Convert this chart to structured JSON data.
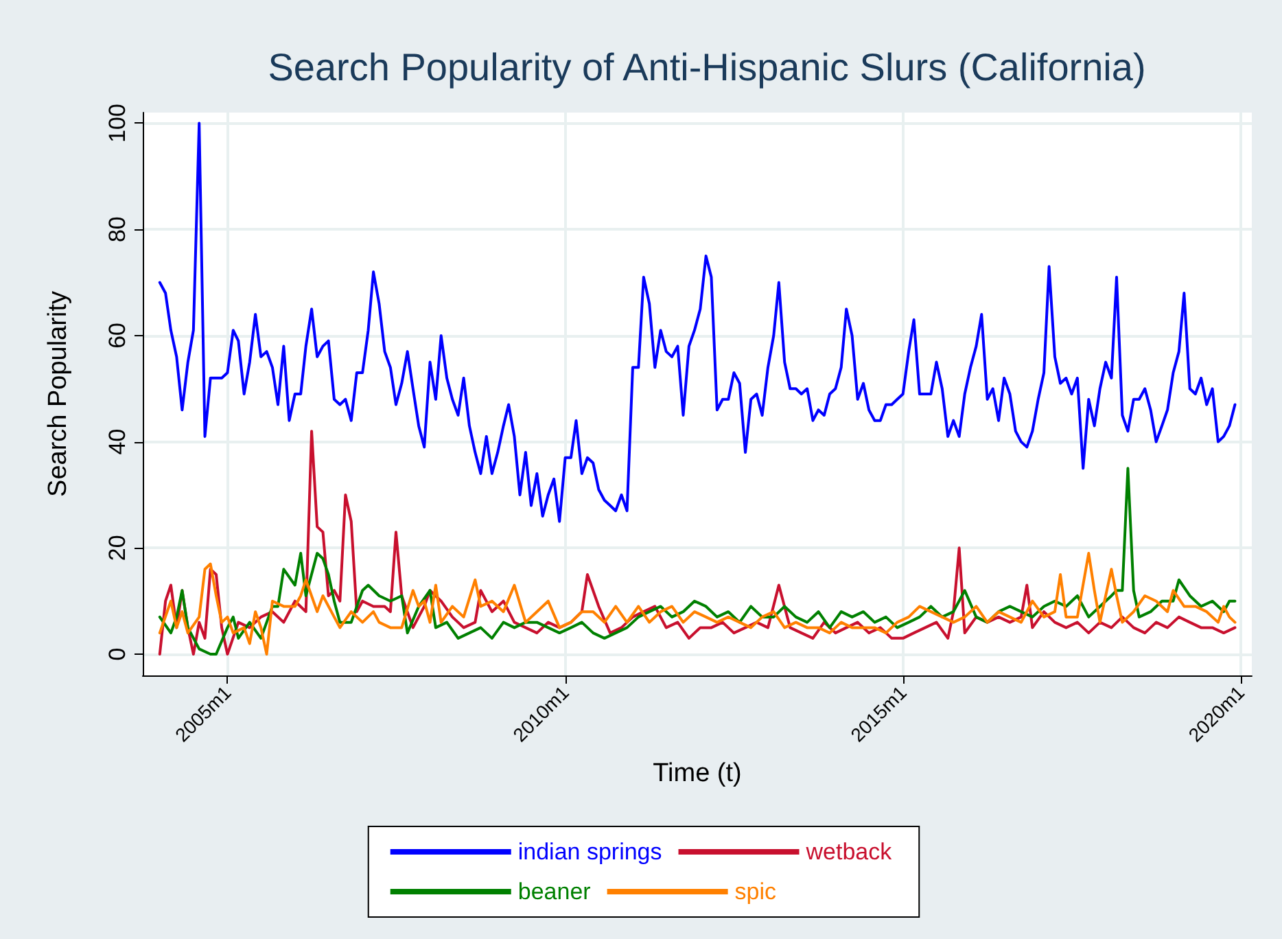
{
  "chart_data": {
    "type": "line",
    "title": "Search Popularity of Anti-Hispanic Slurs (California)",
    "xlabel": "Time (t)",
    "ylabel": "Search Popularity",
    "xlim": [
      "2003-10",
      "2020-03"
    ],
    "ylim": [
      -4,
      102
    ],
    "xticks": [
      {
        "value": "2005-01",
        "label": "2005m1"
      },
      {
        "value": "2010-01",
        "label": "2010m1"
      },
      {
        "value": "2015-01",
        "label": "2015m1"
      },
      {
        "value": "2020-01",
        "label": "2020m1"
      }
    ],
    "yticks": [
      0,
      20,
      40,
      60,
      80,
      100
    ],
    "grid": true,
    "legend": "bottom",
    "marker": "none",
    "line_style": "solid",
    "x": [
      "2004-01",
      "2004-02",
      "2004-03",
      "2004-04",
      "2004-05",
      "2004-06",
      "2004-07",
      "2004-08",
      "2004-09",
      "2004-10",
      "2004-11",
      "2004-12",
      "2005-01",
      "2005-02",
      "2005-03",
      "2005-04",
      "2005-05",
      "2005-06",
      "2005-07",
      "2005-08",
      "2005-09",
      "2005-10",
      "2005-11",
      "2005-12",
      "2006-01",
      "2006-02",
      "2006-03",
      "2006-04",
      "2006-05",
      "2006-06",
      "2006-07",
      "2006-08",
      "2006-09",
      "2006-10",
      "2006-11",
      "2006-12",
      "2007-01",
      "2007-02",
      "2007-03",
      "2007-04",
      "2007-05",
      "2007-06",
      "2007-07",
      "2007-08",
      "2007-09",
      "2007-10",
      "2007-11",
      "2007-12",
      "2008-01",
      "2008-02",
      "2008-03",
      "2008-04",
      "2008-05",
      "2008-06",
      "2008-07",
      "2008-08",
      "2008-09",
      "2008-10",
      "2008-11",
      "2008-12",
      "2009-01",
      "2009-02",
      "2009-03",
      "2009-04",
      "2009-05",
      "2009-06",
      "2009-07",
      "2009-08",
      "2009-09",
      "2009-10",
      "2009-11",
      "2009-12",
      "2010-01",
      "2010-02",
      "2010-03",
      "2010-04",
      "2010-05",
      "2010-06",
      "2010-07",
      "2010-08",
      "2010-09",
      "2010-10",
      "2010-11",
      "2010-12",
      "2011-01",
      "2011-02",
      "2011-03",
      "2011-04",
      "2011-05",
      "2011-06",
      "2011-07",
      "2011-08",
      "2011-09",
      "2011-10",
      "2011-11",
      "2011-12",
      "2012-01",
      "2012-02",
      "2012-03",
      "2012-04",
      "2012-05",
      "2012-06",
      "2012-07",
      "2012-08",
      "2012-09",
      "2012-10",
      "2012-11",
      "2012-12",
      "2013-01",
      "2013-02",
      "2013-03",
      "2013-04",
      "2013-05",
      "2013-06",
      "2013-07",
      "2013-08",
      "2013-09",
      "2013-10",
      "2013-11",
      "2013-12",
      "2014-01",
      "2014-02",
      "2014-03",
      "2014-04",
      "2014-05",
      "2014-06",
      "2014-07",
      "2014-08",
      "2014-09",
      "2014-10",
      "2014-11",
      "2014-12",
      "2015-01",
      "2015-02",
      "2015-03",
      "2015-04",
      "2015-05",
      "2015-06",
      "2015-07",
      "2015-08",
      "2015-09",
      "2015-10",
      "2015-11",
      "2015-12",
      "2016-01",
      "2016-02",
      "2016-03",
      "2016-04",
      "2016-05",
      "2016-06",
      "2016-07",
      "2016-08",
      "2016-09",
      "2016-10",
      "2016-11",
      "2016-12",
      "2017-01",
      "2017-02",
      "2017-03",
      "2017-04",
      "2017-05",
      "2017-06",
      "2017-07",
      "2017-08",
      "2017-09",
      "2017-10",
      "2017-11",
      "2017-12",
      "2018-01",
      "2018-02",
      "2018-03",
      "2018-04",
      "2018-05",
      "2018-06",
      "2018-07",
      "2018-08",
      "2018-09",
      "2018-10",
      "2018-11",
      "2018-12",
      "2019-01",
      "2019-02",
      "2019-03",
      "2019-04",
      "2019-05",
      "2019-06",
      "2019-07",
      "2019-08",
      "2019-09",
      "2019-10",
      "2019-11",
      "2019-12"
    ],
    "series": [
      {
        "name": "indian springs",
        "color": "#0000ff",
        "values": [
          70,
          68,
          61,
          56,
          46,
          55,
          61,
          100,
          41,
          52,
          52,
          52,
          53,
          61,
          59,
          49,
          55,
          64,
          56,
          57,
          54,
          47,
          58,
          44,
          49,
          49,
          58,
          65,
          56,
          58,
          59,
          48,
          47,
          48,
          44,
          53,
          53,
          61,
          72,
          66,
          57,
          54,
          47,
          51,
          57,
          50,
          43,
          39,
          55,
          48,
          60,
          52,
          48,
          45,
          52,
          43,
          38,
          34,
          41,
          34,
          38,
          43,
          47,
          41,
          30,
          38,
          28,
          34,
          26,
          30,
          33,
          25,
          37,
          37,
          44,
          34,
          37,
          36,
          31,
          29,
          28,
          27,
          30,
          27,
          54,
          54,
          71,
          66,
          54,
          61,
          57,
          56,
          58,
          45,
          58,
          61,
          65,
          75,
          71,
          46,
          48,
          48,
          53,
          51,
          38,
          48,
          49,
          45,
          54,
          60,
          70,
          55,
          50,
          50,
          49,
          50,
          44,
          46,
          45,
          49,
          50,
          54,
          65,
          60,
          48,
          51,
          46,
          44,
          44,
          47,
          47,
          48,
          49,
          57,
          63,
          49,
          49,
          49,
          55,
          50,
          41,
          44,
          41,
          49,
          54,
          58,
          64,
          48,
          50,
          44,
          52,
          49,
          42,
          40,
          39,
          42,
          48,
          53,
          73,
          56,
          51,
          52,
          49,
          52,
          35,
          48,
          43,
          50,
          55,
          52,
          71,
          45,
          42,
          48,
          48,
          50,
          46,
          40,
          43,
          46,
          53,
          57,
          68,
          50,
          49,
          52,
          47,
          50,
          40,
          41,
          43,
          47
        ]
      },
      {
        "name": "wetback",
        "color": "#c8102e",
        "x": [
          "2004-01",
          "2004-02",
          "2004-03",
          "2004-04",
          "2004-05",
          "2004-06",
          "2004-07",
          "2004-08",
          "2004-09",
          "2004-10",
          "2004-11",
          "2004-12",
          "2005-01",
          "2005-03",
          "2005-05",
          "2005-07",
          "2005-09",
          "2005-11",
          "2006-01",
          "2006-03",
          "2006-04",
          "2006-05",
          "2006-06",
          "2006-07",
          "2006-08",
          "2006-09",
          "2006-10",
          "2006-11",
          "2006-12",
          "2007-01",
          "2007-03",
          "2007-05",
          "2007-06",
          "2007-07",
          "2007-08",
          "2007-10",
          "2007-12",
          "2008-01",
          "2008-03",
          "2008-05",
          "2008-07",
          "2008-09",
          "2008-10",
          "2008-12",
          "2009-02",
          "2009-04",
          "2009-06",
          "2009-08",
          "2009-10",
          "2009-12",
          "2010-02",
          "2010-04",
          "2010-05",
          "2010-07",
          "2010-09",
          "2010-11",
          "2011-01",
          "2011-03",
          "2011-05",
          "2011-07",
          "2011-09",
          "2011-11",
          "2012-01",
          "2012-03",
          "2012-05",
          "2012-07",
          "2012-09",
          "2012-11",
          "2013-01",
          "2013-03",
          "2013-05",
          "2013-07",
          "2013-09",
          "2013-11",
          "2014-01",
          "2014-03",
          "2014-05",
          "2014-07",
          "2014-09",
          "2014-11",
          "2015-01",
          "2015-03",
          "2015-05",
          "2015-07",
          "2015-09",
          "2015-10",
          "2015-11",
          "2015-12",
          "2016-02",
          "2016-04",
          "2016-06",
          "2016-08",
          "2016-10",
          "2016-11",
          "2016-12",
          "2017-02",
          "2017-04",
          "2017-06",
          "2017-08",
          "2017-10",
          "2017-12",
          "2018-02",
          "2018-04",
          "2018-06",
          "2018-08",
          "2018-10",
          "2018-12",
          "2019-02",
          "2019-04",
          "2019-06",
          "2019-08",
          "2019-10",
          "2019-12"
        ],
        "values": [
          0,
          10,
          13,
          5,
          12,
          5,
          0,
          6,
          3,
          16,
          15,
          5,
          0,
          6,
          5,
          7,
          8,
          6,
          10,
          8,
          42,
          24,
          23,
          11,
          12,
          10,
          30,
          25,
          8,
          10,
          9,
          9,
          8,
          23,
          11,
          5,
          9,
          12,
          10,
          7,
          5,
          6,
          12,
          8,
          10,
          6,
          5,
          4,
          6,
          5,
          6,
          8,
          15,
          9,
          4,
          5,
          7,
          8,
          9,
          5,
          6,
          3,
          5,
          5,
          6,
          4,
          5,
          6,
          5,
          13,
          5,
          4,
          3,
          6,
          4,
          5,
          6,
          4,
          5,
          3,
          3,
          4,
          5,
          6,
          3,
          8,
          20,
          4,
          7,
          6,
          7,
          6,
          7,
          13,
          5,
          8,
          6,
          5,
          6,
          4,
          6,
          5,
          7,
          5,
          4,
          6,
          5,
          7,
          6,
          5,
          5,
          4,
          5
        ]
      },
      {
        "name": "beaner",
        "color": "#008000",
        "x": [
          "2004-01",
          "2004-03",
          "2004-04",
          "2004-05",
          "2004-06",
          "2004-08",
          "2004-10",
          "2004-11",
          "2005-01",
          "2005-02",
          "2005-03",
          "2005-05",
          "2005-07",
          "2005-09",
          "2005-10",
          "2005-11",
          "2006-01",
          "2006-02",
          "2006-03",
          "2006-05",
          "2006-06",
          "2006-07",
          "2006-08",
          "2006-09",
          "2006-11",
          "2007-01",
          "2007-02",
          "2007-04",
          "2007-06",
          "2007-08",
          "2007-09",
          "2007-11",
          "2008-01",
          "2008-02",
          "2008-04",
          "2008-06",
          "2008-08",
          "2008-10",
          "2008-12",
          "2009-02",
          "2009-04",
          "2009-06",
          "2009-08",
          "2009-10",
          "2009-12",
          "2010-02",
          "2010-04",
          "2010-06",
          "2010-08",
          "2010-10",
          "2010-12",
          "2011-02",
          "2011-04",
          "2011-06",
          "2011-08",
          "2011-10",
          "2011-12",
          "2012-02",
          "2012-04",
          "2012-06",
          "2012-08",
          "2012-10",
          "2012-12",
          "2013-02",
          "2013-04",
          "2013-06",
          "2013-08",
          "2013-10",
          "2013-12",
          "2014-02",
          "2014-04",
          "2014-06",
          "2014-08",
          "2014-10",
          "2014-12",
          "2015-02",
          "2015-04",
          "2015-06",
          "2015-08",
          "2015-10",
          "2015-12",
          "2016-02",
          "2016-04",
          "2016-06",
          "2016-08",
          "2016-10",
          "2016-12",
          "2017-02",
          "2017-04",
          "2017-06",
          "2017-08",
          "2017-10",
          "2017-12",
          "2018-02",
          "2018-03",
          "2018-04",
          "2018-05",
          "2018-06",
          "2018-07",
          "2018-09",
          "2018-11",
          "2019-01",
          "2019-02",
          "2019-04",
          "2019-06",
          "2019-08",
          "2019-10",
          "2019-11",
          "2019-12"
        ],
        "values": [
          7,
          4,
          7,
          12,
          5,
          1,
          0,
          0,
          5,
          7,
          3,
          6,
          3,
          9,
          9,
          16,
          13,
          19,
          11,
          19,
          18,
          15,
          10,
          6,
          6,
          12,
          13,
          11,
          10,
          11,
          4,
          9,
          12,
          5,
          6,
          3,
          4,
          5,
          3,
          6,
          5,
          6,
          6,
          5,
          4,
          5,
          6,
          4,
          3,
          4,
          5,
          7,
          8,
          9,
          7,
          8,
          10,
          9,
          7,
          8,
          6,
          9,
          7,
          7,
          9,
          7,
          6,
          8,
          5,
          8,
          7,
          8,
          6,
          7,
          5,
          6,
          7,
          9,
          7,
          8,
          12,
          7,
          6,
          8,
          9,
          8,
          7,
          9,
          10,
          9,
          11,
          7,
          9,
          11,
          12,
          12,
          35,
          12,
          7,
          8,
          10,
          10,
          14,
          11,
          9,
          10,
          8,
          10,
          10
        ]
      },
      {
        "name": "spic",
        "color": "#ff8000",
        "x": [
          "2004-01",
          "2004-03",
          "2004-04",
          "2004-05",
          "2004-06",
          "2004-08",
          "2004-09",
          "2004-10",
          "2004-11",
          "2004-12",
          "2005-01",
          "2005-02",
          "2005-04",
          "2005-05",
          "2005-06",
          "2005-07",
          "2005-08",
          "2005-09",
          "2005-11",
          "2006-01",
          "2006-02",
          "2006-03",
          "2006-05",
          "2006-06",
          "2006-08",
          "2006-09",
          "2006-11",
          "2007-01",
          "2007-03",
          "2007-04",
          "2007-06",
          "2007-08",
          "2007-10",
          "2007-11",
          "2007-12",
          "2008-01",
          "2008-02",
          "2008-03",
          "2008-05",
          "2008-07",
          "2008-09",
          "2008-10",
          "2008-12",
          "2009-02",
          "2009-04",
          "2009-06",
          "2009-08",
          "2009-10",
          "2009-12",
          "2010-02",
          "2010-04",
          "2010-06",
          "2010-08",
          "2010-10",
          "2010-12",
          "2011-02",
          "2011-04",
          "2011-06",
          "2011-08",
          "2011-10",
          "2011-12",
          "2012-02",
          "2012-04",
          "2012-06",
          "2012-08",
          "2012-10",
          "2012-12",
          "2013-02",
          "2013-04",
          "2013-06",
          "2013-08",
          "2013-10",
          "2013-12",
          "2014-02",
          "2014-04",
          "2014-06",
          "2014-08",
          "2014-10",
          "2014-12",
          "2015-02",
          "2015-04",
          "2015-06",
          "2015-08",
          "2015-10",
          "2015-12",
          "2016-02",
          "2016-04",
          "2016-06",
          "2016-08",
          "2016-10",
          "2016-12",
          "2017-02",
          "2017-04",
          "2017-05",
          "2017-06",
          "2017-08",
          "2017-10",
          "2017-11",
          "2017-12",
          "2018-02",
          "2018-03",
          "2018-04",
          "2018-06",
          "2018-08",
          "2018-10",
          "2018-12",
          "2019-01",
          "2019-03",
          "2019-05",
          "2019-07",
          "2019-09",
          "2019-10",
          "2019-11",
          "2019-12"
        ],
        "values": [
          4,
          10,
          5,
          8,
          4,
          7,
          16,
          17,
          11,
          6,
          7,
          4,
          5,
          2,
          8,
          5,
          0,
          10,
          9,
          9,
          11,
          14,
          8,
          11,
          7,
          5,
          8,
          6,
          8,
          6,
          5,
          5,
          12,
          9,
          10,
          6,
          13,
          6,
          9,
          7,
          14,
          9,
          10,
          8,
          13,
          6,
          8,
          10,
          5,
          6,
          8,
          8,
          6,
          9,
          6,
          9,
          6,
          8,
          9,
          6,
          8,
          7,
          6,
          7,
          6,
          5,
          7,
          8,
          5,
          6,
          5,
          5,
          4,
          6,
          5,
          5,
          5,
          4,
          6,
          7,
          9,
          8,
          7,
          6,
          7,
          9,
          6,
          8,
          7,
          6,
          10,
          7,
          8,
          15,
          7,
          7,
          19,
          12,
          6,
          16,
          11,
          6,
          8,
          11,
          10,
          8,
          12,
          9,
          9,
          8,
          6,
          9,
          7,
          6
        ]
      }
    ]
  }
}
